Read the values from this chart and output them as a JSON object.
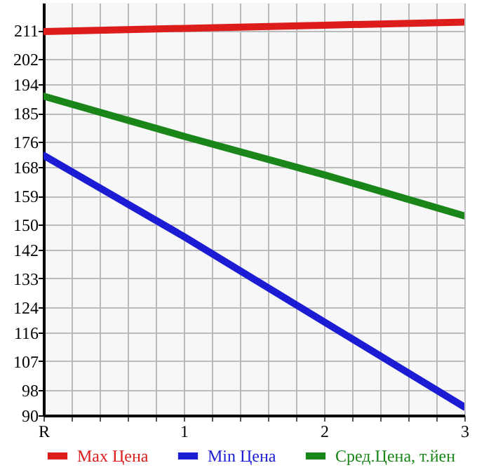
{
  "chart_data": {
    "type": "line",
    "x": [
      0,
      1,
      2,
      3
    ],
    "series": [
      {
        "name": "Max Цена",
        "color": "#dd1c1c",
        "values": [
          210.6,
          211.6,
          212.6,
          213.6
        ]
      },
      {
        "name": "Min Цена",
        "color": "#1c1cd4",
        "values": [
          171.7,
          146.2,
          119.4,
          92.6
        ]
      },
      {
        "name": "Сред.Цена, т.йен",
        "color": "#1a861a",
        "values": [
          190.3,
          177.7,
          165.6,
          152.7
        ]
      }
    ],
    "xlim": [
      0,
      3
    ],
    "xticks": [
      {
        "value": 0,
        "label": "R"
      },
      {
        "value": 0.2,
        "label": null
      },
      {
        "value": 0.4,
        "label": null
      },
      {
        "value": 0.6,
        "label": null
      },
      {
        "value": 0.8,
        "label": null
      },
      1,
      {
        "value": 1.2,
        "label": null
      },
      {
        "value": 1.4,
        "label": null
      },
      {
        "value": 1.6,
        "label": null
      },
      {
        "value": 1.8,
        "label": null
      },
      2,
      {
        "value": 2.2,
        "label": null
      },
      {
        "value": 2.4,
        "label": null
      },
      {
        "value": 2.6,
        "label": null
      },
      {
        "value": 2.8,
        "label": null
      },
      3
    ],
    "ylim": [
      90,
      219.64
    ],
    "yticks": [
      90,
      98,
      107,
      116,
      124,
      133,
      142,
      150,
      159,
      168,
      176,
      185,
      194,
      202,
      211
    ],
    "grid": true,
    "legend": "bottom",
    "marker": "none",
    "line_style": "solid"
  }
}
